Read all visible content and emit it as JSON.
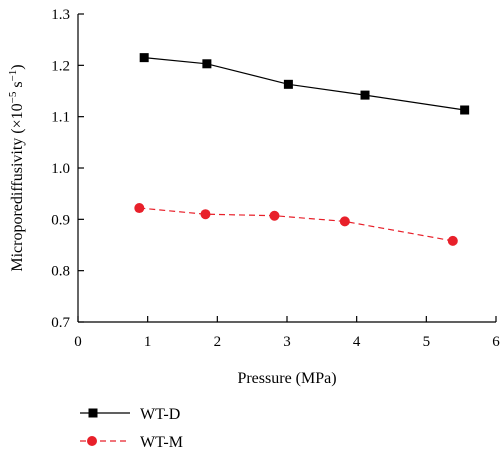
{
  "chart_data": {
    "type": "line",
    "title": "",
    "xlabel": "Pressure (MPa)",
    "ylabel_main": "Microporediffusivity (×10",
    "ylabel_exp1": "−5",
    "ylabel_unit": " s",
    "ylabel_exp2": "−1",
    "ylabel_close": ")",
    "xlim": [
      0,
      6
    ],
    "ylim": [
      0.7,
      1.3
    ],
    "xticks": [
      0,
      1,
      2,
      3,
      4,
      5,
      6
    ],
    "yticks": [
      0.7,
      0.8,
      0.9,
      1.0,
      1.1,
      1.2,
      1.3
    ],
    "xtick_labels": [
      "0",
      "1",
      "2",
      "3",
      "4",
      "5",
      "6"
    ],
    "ytick_labels": [
      "0.7",
      "0.8",
      "0.9",
      "1.0",
      "1.1",
      "1.2",
      "1.3"
    ],
    "grid": false,
    "legend_position": "bottom-left, below plot",
    "series": [
      {
        "name": "WT-D",
        "color": "#000000",
        "line_style": "solid",
        "marker": "square",
        "x": [
          0.95,
          1.85,
          3.02,
          4.12,
          5.55
        ],
        "y": [
          1.215,
          1.203,
          1.163,
          1.142,
          1.113
        ]
      },
      {
        "name": "WT-M",
        "color": "#e8202a",
        "line_style": "dashed",
        "marker": "circle",
        "x": [
          0.88,
          1.83,
          2.82,
          3.83,
          5.38
        ],
        "y": [
          0.922,
          0.91,
          0.907,
          0.896,
          0.858
        ]
      }
    ]
  }
}
